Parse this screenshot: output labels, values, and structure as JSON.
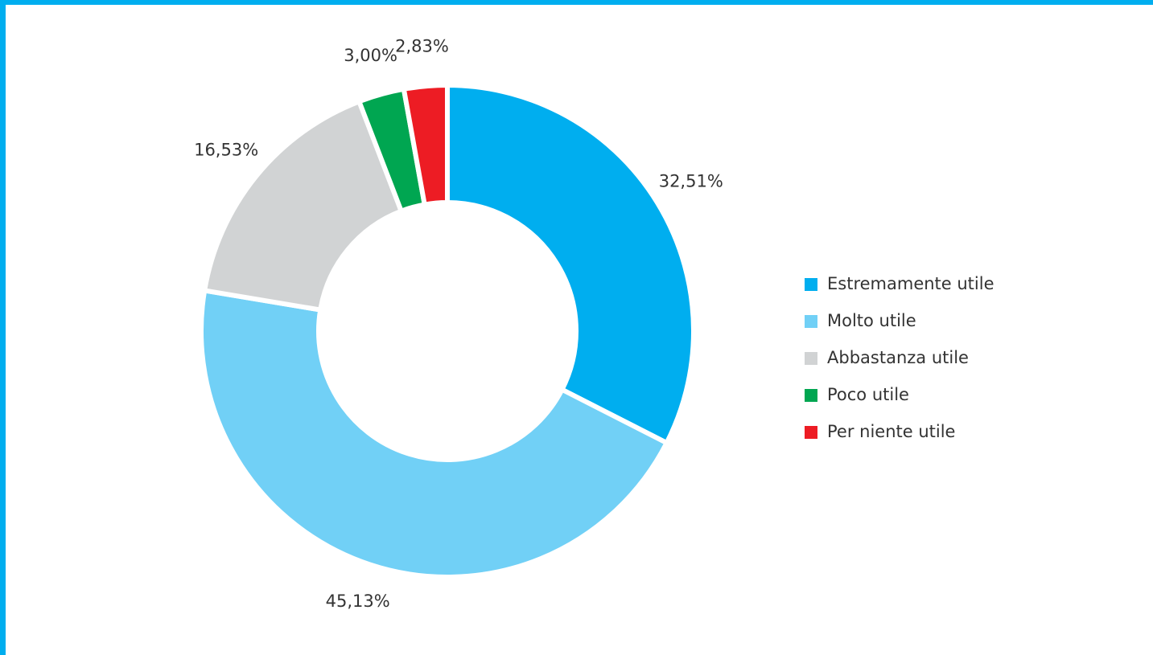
{
  "chart_data": {
    "type": "donut",
    "categories": [
      "Estremamente utile",
      "Molto utile",
      "Abbastanza utile",
      "Poco utile",
      "Per niente utile"
    ],
    "values": [
      32.51,
      45.13,
      16.53,
      3.0,
      2.83
    ],
    "value_labels": [
      "32,51%",
      "45,13%",
      "16,53%",
      "3,00%",
      "2,83%"
    ],
    "colors": [
      "#00aeef",
      "#71d0f6",
      "#d1d3d4",
      "#00a651",
      "#ed1c24"
    ],
    "legend": "right"
  }
}
